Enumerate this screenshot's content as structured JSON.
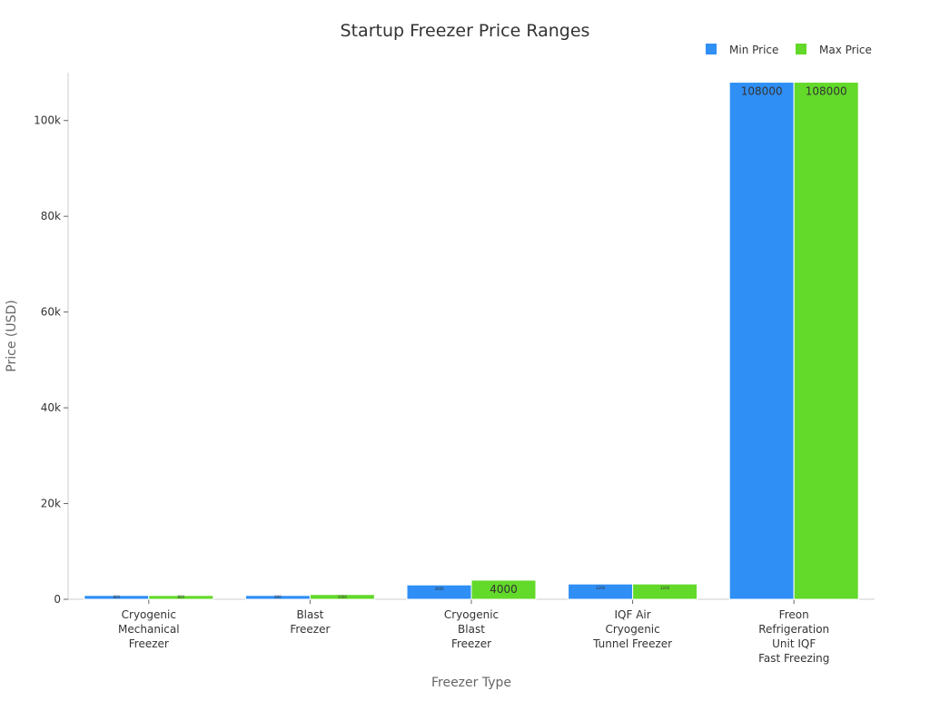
{
  "chart_data": {
    "type": "bar",
    "title": "Startup Freezer Price Ranges",
    "xlabel": "Freezer Type",
    "ylabel": "Price (USD)",
    "ylim": [
      0,
      110000
    ],
    "yticks": [
      0,
      20000,
      40000,
      60000,
      80000,
      100000
    ],
    "ytick_labels": [
      "0",
      "20k",
      "40k",
      "60k",
      "80k",
      "100k"
    ],
    "categories": [
      [
        "Cryogenic",
        "Mechanical",
        "Freezer"
      ],
      [
        "Blast",
        "Freezer"
      ],
      [
        "Cryogenic",
        "Blast",
        "Freezer"
      ],
      [
        "IQF Air",
        "Cryogenic",
        "Tunnel Freezer"
      ],
      [
        "Freon",
        "Refrigeration",
        "Unit IQF",
        "Fast Freezing"
      ]
    ],
    "series": [
      {
        "name": "Min Price",
        "color": "#2f8ff5",
        "values": [
          800,
          800,
          3000,
          3200,
          108000
        ]
      },
      {
        "name": "Max Price",
        "color": "#63d92a",
        "values": [
          800,
          1000,
          4000,
          3200,
          108000
        ]
      }
    ],
    "legend": "top-right",
    "grid": false
  }
}
